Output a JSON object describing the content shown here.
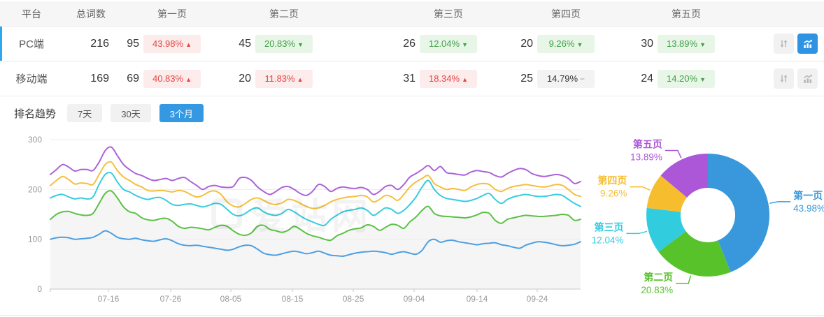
{
  "table": {
    "headers": [
      "平台",
      "总词数",
      "第一页",
      "第二页",
      "第三页",
      "第四页",
      "第五页"
    ],
    "rows": [
      {
        "platform": "PC端",
        "total": "216",
        "active": true,
        "pages": [
          {
            "count": "95",
            "pct": "43.98%",
            "dir": "up",
            "tone": "red"
          },
          {
            "count": "45",
            "pct": "20.83%",
            "dir": "down",
            "tone": "green"
          },
          {
            "count": "26",
            "pct": "12.04%",
            "dir": "down",
            "tone": "green"
          },
          {
            "count": "20",
            "pct": "9.26%",
            "dir": "down",
            "tone": "green"
          },
          {
            "count": "30",
            "pct": "13.89%",
            "dir": "down",
            "tone": "green"
          }
        ]
      },
      {
        "platform": "移动端",
        "total": "169",
        "active": false,
        "pages": [
          {
            "count": "69",
            "pct": "40.83%",
            "dir": "up",
            "tone": "red"
          },
          {
            "count": "20",
            "pct": "11.83%",
            "dir": "up",
            "tone": "red"
          },
          {
            "count": "31",
            "pct": "18.34%",
            "dir": "up",
            "tone": "red"
          },
          {
            "count": "25",
            "pct": "14.79%",
            "dir": "flat",
            "tone": "gray"
          },
          {
            "count": "24",
            "pct": "14.20%",
            "dir": "down",
            "tone": "green"
          }
        ]
      }
    ]
  },
  "trend": {
    "label": "排名趋势",
    "tabs": [
      {
        "label": "7天",
        "active": false
      },
      {
        "label": "30天",
        "active": false
      },
      {
        "label": "3个月",
        "active": true
      }
    ]
  },
  "watermark": "爱站网",
  "chart_data": [
    {
      "type": "line",
      "title": "排名趋势 3个月 (累计词数)",
      "xlabel": "",
      "ylabel": "",
      "ylim": [
        0,
        300
      ],
      "y_ticks": [
        0,
        100,
        200,
        300
      ],
      "x_ticks": [
        "07-16",
        "07-26",
        "08-05",
        "08-15",
        "08-25",
        "09-04",
        "09-14",
        "09-24"
      ],
      "grid": true,
      "legend": false,
      "series": [
        {
          "name": "第一页",
          "color": "#4d9fe2",
          "area": false,
          "values": [
            100,
            103,
            104,
            103,
            100,
            101,
            102,
            104,
            110,
            117,
            112,
            104,
            101,
            100,
            102,
            99,
            97,
            96,
            99,
            101,
            97,
            91,
            88,
            87,
            88,
            86,
            84,
            82,
            80,
            78,
            80,
            85,
            88,
            87,
            80,
            72,
            69,
            68,
            71,
            74,
            76,
            74,
            71,
            73,
            76,
            72,
            68,
            67,
            66,
            69,
            72,
            74,
            75,
            76,
            75,
            73,
            70,
            73,
            75,
            72,
            70,
            78,
            95,
            100,
            94,
            97,
            98,
            95,
            93,
            91,
            89,
            91,
            92,
            93,
            89,
            87,
            84,
            82,
            88,
            92,
            95,
            94,
            92,
            89,
            87,
            88,
            90,
            95
          ]
        },
        {
          "name": "第二页",
          "color": "#5cc146",
          "area": true,
          "values": [
            140,
            150,
            155,
            156,
            152,
            149,
            148,
            152,
            172,
            192,
            197,
            183,
            165,
            155,
            152,
            143,
            139,
            138,
            141,
            142,
            136,
            126,
            122,
            124,
            123,
            121,
            119,
            124,
            128,
            126,
            117,
            110,
            108,
            113,
            126,
            128,
            120,
            117,
            114,
            118,
            126,
            120,
            112,
            107,
            104,
            100,
            98,
            107,
            112,
            118,
            121,
            123,
            129,
            126,
            118,
            124,
            130,
            128,
            122,
            135,
            145,
            158,
            166,
            152,
            147,
            146,
            145,
            144,
            143,
            145,
            149,
            154,
            152,
            138,
            132,
            140,
            143,
            146,
            148,
            147,
            146,
            146,
            147,
            148,
            150,
            148,
            138,
            140
          ]
        },
        {
          "name": "第三页",
          "color": "#38cdde",
          "area": false,
          "values": [
            183,
            188,
            190,
            185,
            181,
            183,
            181,
            185,
            210,
            230,
            233,
            215,
            200,
            195,
            188,
            183,
            180,
            183,
            184,
            178,
            170,
            168,
            170,
            171,
            168,
            165,
            168,
            172,
            170,
            160,
            150,
            147,
            152,
            160,
            163,
            155,
            150,
            148,
            152,
            160,
            155,
            147,
            140,
            135,
            130,
            128,
            140,
            148,
            155,
            158,
            160,
            163,
            158,
            148,
            155,
            163,
            160,
            152,
            158,
            170,
            185,
            205,
            218,
            200,
            188,
            182,
            180,
            178,
            176,
            178,
            182,
            188,
            192,
            180,
            172,
            180,
            185,
            188,
            190,
            188,
            186,
            186,
            188,
            190,
            188,
            180,
            172,
            166
          ]
        },
        {
          "name": "第四页",
          "color": "#f6bf3d",
          "area": false,
          "values": [
            208,
            218,
            226,
            220,
            211,
            213,
            212,
            210,
            230,
            250,
            255,
            238,
            225,
            218,
            210,
            205,
            198,
            197,
            198,
            197,
            195,
            198,
            196,
            190,
            185,
            188,
            195,
            197,
            190,
            175,
            167,
            165,
            172,
            180,
            183,
            178,
            172,
            170,
            173,
            180,
            178,
            172,
            166,
            162,
            163,
            168,
            175,
            180,
            183,
            185,
            186,
            188,
            185,
            175,
            180,
            188,
            185,
            178,
            190,
            205,
            215,
            222,
            228,
            212,
            205,
            200,
            202,
            200,
            198,
            205,
            210,
            212,
            210,
            200,
            196,
            202,
            206,
            208,
            210,
            208,
            206,
            205,
            207,
            210,
            208,
            200,
            190,
            186
          ]
        },
        {
          "name": "第五页",
          "color": "#ab63d8",
          "area": false,
          "values": [
            230,
            240,
            250,
            245,
            237,
            240,
            240,
            238,
            255,
            278,
            285,
            268,
            250,
            240,
            232,
            228,
            222,
            218,
            220,
            222,
            218,
            222,
            224,
            216,
            208,
            200,
            206,
            208,
            205,
            204,
            206,
            222,
            224,
            218,
            205,
            196,
            190,
            196,
            204,
            206,
            200,
            192,
            188,
            196,
            210,
            206,
            196,
            202,
            205,
            203,
            202,
            204,
            200,
            190,
            196,
            206,
            208,
            200,
            210,
            225,
            232,
            240,
            248,
            238,
            246,
            234,
            232,
            230,
            229,
            235,
            238,
            236,
            234,
            228,
            225,
            232,
            238,
            242,
            240,
            232,
            228,
            226,
            228,
            230,
            228,
            222,
            212,
            216
          ]
        }
      ]
    },
    {
      "type": "pie",
      "donut": true,
      "legend": false,
      "slices": [
        {
          "name": "第一页",
          "value": 43.98,
          "label": "43.98%",
          "color": "#3998db"
        },
        {
          "name": "第二页",
          "value": 20.83,
          "label": "20.83%",
          "color": "#58c22b"
        },
        {
          "name": "第三页",
          "value": 12.04,
          "label": "12.04%",
          "color": "#32ccdf"
        },
        {
          "name": "第四页",
          "value": 9.26,
          "label": "9.26%",
          "color": "#f6bd2f"
        },
        {
          "name": "第五页",
          "value": 13.89,
          "label": "13.89%",
          "color": "#ab57d8"
        }
      ]
    }
  ]
}
